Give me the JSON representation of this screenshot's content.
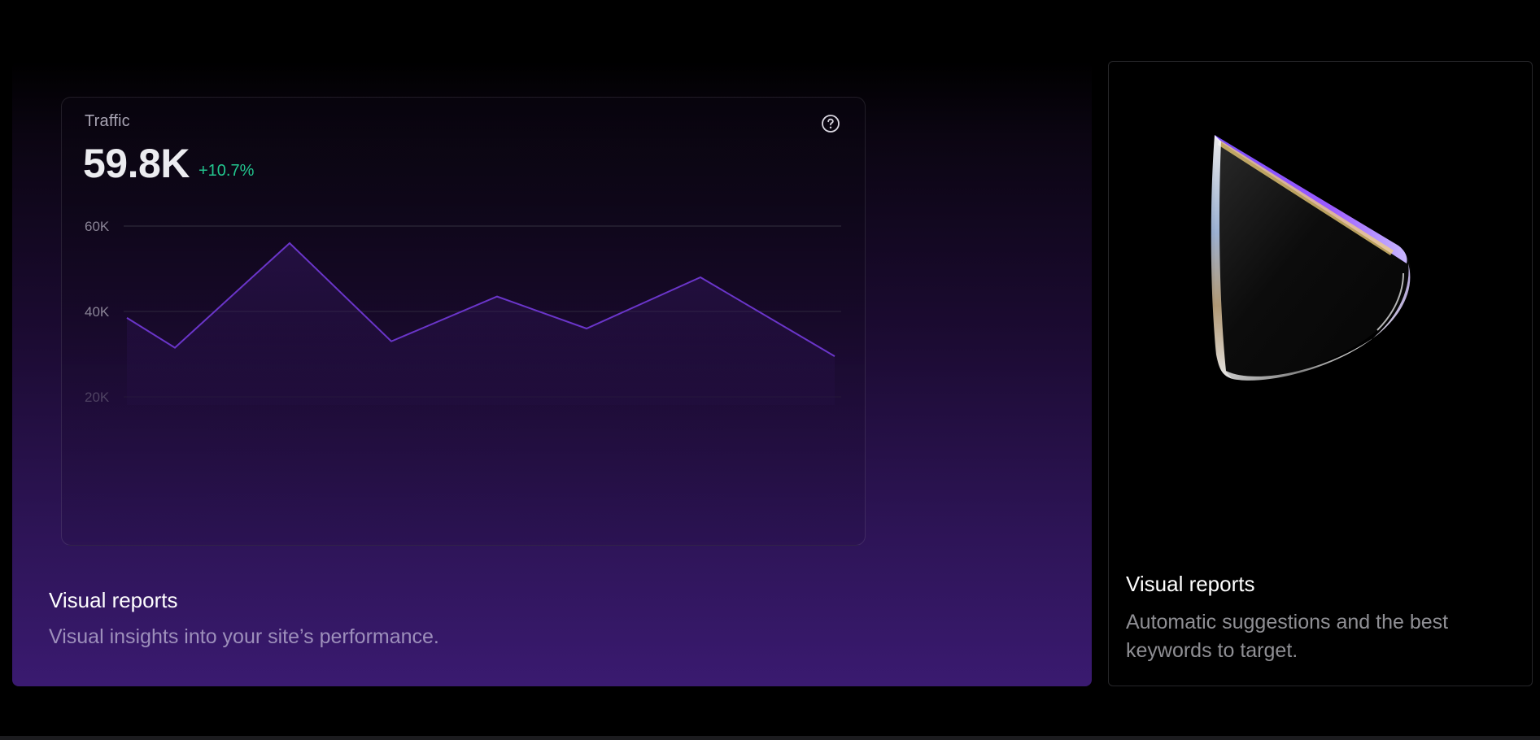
{
  "colors": {
    "page_background": "#000000",
    "card_gradient_bottom": "#3a1a70",
    "line_stroke": "#6a35c9",
    "positive_change": "#22c58e",
    "tick_label": "#8a8496"
  },
  "feature_cards": [
    {
      "title": "Visual reports",
      "description": "Visual insights into your site’s performance."
    },
    {
      "title": "Visual reports",
      "description": "Automatic suggestions and the best keywords to target.",
      "illustration": "glass-cone"
    }
  ],
  "traffic_widget": {
    "title": "Traffic",
    "value": "59.8K",
    "change": "+10.7%",
    "help_icon": "question-circle-icon"
  },
  "chart_data": {
    "type": "area",
    "title": "Traffic",
    "y_ticks": [
      "60K",
      "40K",
      "20K"
    ],
    "y_tick_values": [
      60000,
      40000,
      20000
    ],
    "ylim": [
      20000,
      60000
    ],
    "grid": true,
    "series": [
      {
        "values": [
          38500,
          31500,
          56000,
          33000,
          43500,
          36000,
          48000,
          29500
        ]
      }
    ]
  }
}
